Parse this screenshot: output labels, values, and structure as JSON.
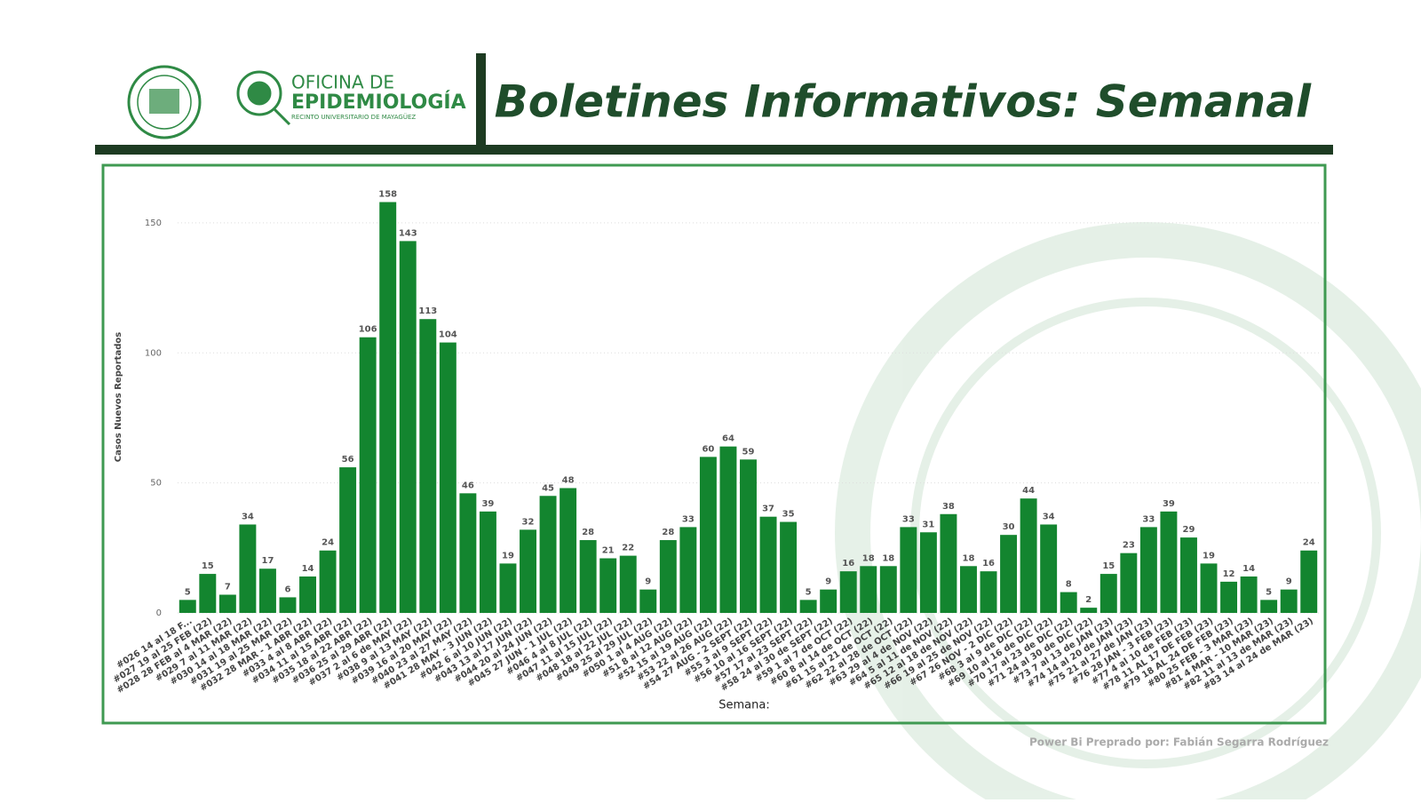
{
  "header": {
    "office_line1": "OFICINA DE",
    "office_line2": "EPIDEMIOLOGÍA",
    "office_line3": "RECINTO UNIVERSITARIO DE MAYAGÜEZ",
    "title": "Boletines Informativos: Semanal"
  },
  "footer": "Power Bi Preprado por: Fabián Segarra Rodríguez",
  "chart_data": {
    "type": "bar",
    "y_label": "Casos Nuevos Reportados",
    "x_label": "Semana:",
    "categories": [
      "#026 14 al 18 F...",
      "#027 19 al 25 FEB (22)",
      "#028 28 FEB al 4 MAR (22)",
      "#029 7 al 11 MAR (22)",
      "#030 14 al 18 MAR (22)",
      "#031 19 al 25 MAR (22)",
      "#032 28 MAR - 1 ABR (22)",
      "#033 4 al 8 ABR (22)",
      "#034 11 al 15 ABR (22)",
      "#035 18 al 22 ABR (22)",
      "#036 25 al 29 ABR (22)",
      "#037 2 al 6 de MAY (22)",
      "#038 9 al 13 MAY (22)",
      "#039 16 al 20 MAY (22)",
      "#040 23 al 27 MAY (22)",
      "#041 28 MAY - 3 JUN (22)",
      "#042 6 al 10 JUN (22)",
      "#043 13 al 17 JUN (22)",
      "#044 20 al 24 JUN (22)",
      "#045 27 JUN - 1 JUL (22)",
      "#046 4 al 8 JUL (22)",
      "#047 11 al 15 JUL (22)",
      "#048 18 al 22 JUL (22)",
      "#049 25 al 29 JUL (22)",
      "#050 1 al 4 AUG (22)",
      "#51 8 al 12 AUG (22)",
      "#52 15 al 19 AUG (22)",
      "#53 22 al 26 AUG (22)",
      "#54 27 AUG - 2 SEPT (22)",
      "#55 3 al 9 SEPT (22)",
      "#56 10 al 16 SEPT (22)",
      "#57 17 al 23 SEPT (22)",
      "#58 24 al 30 de SEPT (22)",
      "#59 1 al 7 de OCT (22)",
      "#60 8 al 14 de OCT (22)",
      "#61 15 al 21 de OCT (22)",
      "#62 22 al 28 de OCT (22)",
      "#63 29 al 4 de NOV (22)",
      "#64 5 al 11 de NOV (22)",
      "#65 12 al 18 de NOV (22)",
      "#66 19 al 25 de NOV (22)",
      "#67 26 NOV - 2 DIC (22)",
      "#68 3 al 9 de DIC (22)",
      "#69 10 al 16 de DIC (22)",
      "#70 17 al 23 de DIC (22)",
      "#71 24 al 30 de DIC (22)",
      "#73 7 al 13 de JAN (23)",
      "#74 14 al 20 de JAN (23)",
      "#75 21 al 27 de JAN (23)",
      "#76 28 JAN - 3 FEB (23)",
      "#77 4 al 10 de FEB (23)",
      "#78 11 AL 17 DE FEB (23)",
      "#79 18 AL 24 DE FEB (23)",
      "#80 25 FEB - 3 MAR (23)",
      "#81 4 MAR - 10 MAR (23)",
      "#82 11 al 13 de MAR (23)",
      "#83 14 al 24 de MAR (23)"
    ],
    "values": [
      5,
      15,
      7,
      34,
      17,
      6,
      14,
      24,
      56,
      106,
      158,
      143,
      113,
      104,
      46,
      39,
      19,
      32,
      45,
      48,
      28,
      21,
      22,
      9,
      28,
      33,
      60,
      64,
      59,
      37,
      35,
      5,
      9,
      16,
      18,
      18,
      33,
      31,
      38,
      18,
      16,
      30,
      44,
      34,
      8,
      2,
      15,
      23,
      33,
      39,
      29,
      19,
      12,
      14,
      5,
      9,
      24
    ],
    "color": "#13852f",
    "ylim": [
      0,
      165
    ],
    "yticks": [
      0,
      50,
      100,
      150
    ],
    "grid": true
  }
}
